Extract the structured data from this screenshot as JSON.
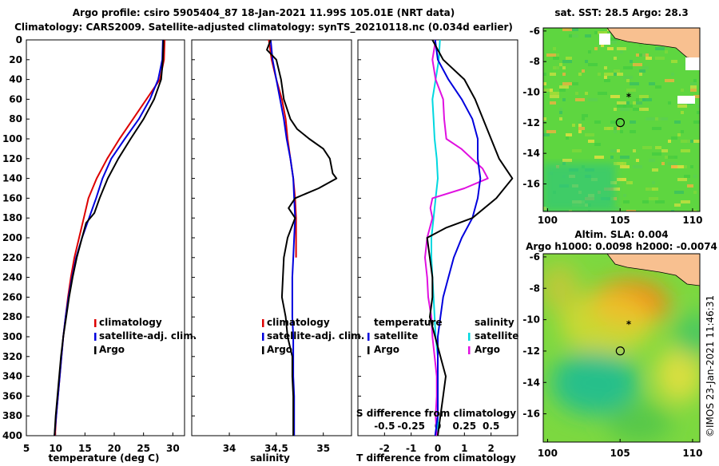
{
  "header": {
    "line1": "Argo profile: csiro 5905404_87 18-Jan-2021 11.99S 105.01E (NRT data)",
    "line2": "Climatology: CARS2009. Satellite-adjusted climatology: synTS_20210118.nc (0.034d earlier)"
  },
  "credit": "©IMOS 23-Jan-2021 11:46:31",
  "colors": {
    "climatology": "#dd0000",
    "satellite": "#0000dd",
    "argo": "#000000",
    "sat_salinity": "#00d8e0",
    "argo_salinity": "#e010e0",
    "land": "#f8c090"
  },
  "chart_data": [
    {
      "type": "line",
      "id": "temperature",
      "xlabel": "temperature (deg C)",
      "ylabel": "",
      "xlim": [
        5,
        32
      ],
      "ylim": [
        400,
        0
      ],
      "xticks": [
        5,
        10,
        15,
        20,
        25,
        30
      ],
      "yticks": [
        0,
        20,
        40,
        60,
        80,
        100,
        120,
        140,
        160,
        180,
        200,
        220,
        240,
        260,
        280,
        300,
        320,
        340,
        360,
        380,
        400
      ],
      "legend": [
        "climatology",
        "satellite-adj. clim.",
        "Argo"
      ],
      "series": [
        {
          "name": "climatology",
          "color": "#dd0000",
          "points": [
            [
              28.6,
              0
            ],
            [
              28.5,
              20
            ],
            [
              27.8,
              40
            ],
            [
              25.5,
              60
            ],
            [
              23.2,
              80
            ],
            [
              20.9,
              100
            ],
            [
              18.8,
              120
            ],
            [
              17.0,
              140
            ],
            [
              15.6,
              160
            ],
            [
              14.8,
              180
            ],
            [
              14.0,
              200
            ],
            [
              13.2,
              220
            ],
            [
              12.6,
              240
            ],
            [
              12.1,
              260
            ],
            [
              11.7,
              280
            ],
            [
              11.3,
              300
            ],
            [
              11.0,
              320
            ],
            [
              10.7,
              340
            ],
            [
              10.4,
              360
            ],
            [
              10.1,
              380
            ],
            [
              9.9,
              400
            ]
          ]
        },
        {
          "name": "satellite-adj. clim.",
          "color": "#0000dd",
          "points": [
            [
              28.3,
              0
            ],
            [
              28.2,
              20
            ],
            [
              27.5,
              40
            ],
            [
              26.1,
              60
            ],
            [
              24.2,
              80
            ],
            [
              21.8,
              100
            ],
            [
              19.5,
              120
            ],
            [
              18.0,
              140
            ],
            [
              16.9,
              160
            ],
            [
              15.7,
              180
            ],
            [
              14.5,
              200
            ],
            [
              13.5,
              220
            ],
            [
              12.8,
              240
            ],
            [
              12.2,
              260
            ],
            [
              11.7,
              280
            ],
            [
              11.3,
              300
            ],
            [
              11.0,
              320
            ],
            [
              10.7,
              340
            ],
            [
              10.4,
              360
            ],
            [
              10.1,
              380
            ],
            [
              9.8,
              400
            ]
          ]
        },
        {
          "name": "Argo",
          "color": "#000000",
          "points": [
            [
              28.4,
              0
            ],
            [
              28.3,
              20
            ],
            [
              28.0,
              40
            ],
            [
              26.8,
              60
            ],
            [
              25.0,
              80
            ],
            [
              22.8,
              100
            ],
            [
              20.7,
              120
            ],
            [
              18.9,
              140
            ],
            [
              17.5,
              160
            ],
            [
              16.6,
              175
            ],
            [
              15.2,
              185
            ],
            [
              14.5,
              200
            ],
            [
              13.6,
              220
            ],
            [
              12.9,
              240
            ],
            [
              12.3,
              260
            ],
            [
              11.8,
              280
            ],
            [
              11.3,
              300
            ],
            [
              10.9,
              320
            ],
            [
              10.6,
              340
            ],
            [
              10.3,
              360
            ],
            [
              10.0,
              380
            ],
            [
              9.8,
              400
            ]
          ]
        }
      ]
    },
    {
      "type": "line",
      "id": "salinity",
      "xlabel": "salinity",
      "ylabel": "",
      "xlim": [
        33.6,
        35.3
      ],
      "ylim": [
        400,
        0
      ],
      "xticks": [
        34,
        34.5,
        35
      ],
      "legend": [
        "climatology",
        "satellite-adj. clim.",
        "Argo"
      ],
      "series": [
        {
          "name": "climatology",
          "color": "#dd0000",
          "points": [
            [
              34.42,
              0
            ],
            [
              34.45,
              20
            ],
            [
              34.5,
              40
            ],
            [
              34.56,
              60
            ],
            [
              34.6,
              80
            ],
            [
              34.62,
              100
            ],
            [
              34.65,
              120
            ],
            [
              34.68,
              140
            ],
            [
              34.7,
              160
            ],
            [
              34.71,
              180
            ],
            [
              34.71,
              200
            ],
            [
              34.71,
              220
            ]
          ]
        },
        {
          "name": "satellite-adj. clim.",
          "color": "#0000dd",
          "points": [
            [
              34.44,
              0
            ],
            [
              34.46,
              20
            ],
            [
              34.5,
              40
            ],
            [
              34.54,
              60
            ],
            [
              34.58,
              80
            ],
            [
              34.61,
              100
            ],
            [
              34.65,
              120
            ],
            [
              34.68,
              140
            ],
            [
              34.69,
              160
            ],
            [
              34.7,
              180
            ],
            [
              34.69,
              200
            ],
            [
              34.68,
              220
            ],
            [
              34.67,
              240
            ],
            [
              34.67,
              260
            ],
            [
              34.67,
              280
            ],
            [
              34.68,
              300
            ],
            [
              34.68,
              320
            ],
            [
              34.68,
              340
            ],
            [
              34.69,
              360
            ],
            [
              34.69,
              380
            ],
            [
              34.69,
              400
            ]
          ]
        },
        {
          "name": "Argo",
          "color": "#000000",
          "points": [
            [
              34.44,
              0
            ],
            [
              34.4,
              10
            ],
            [
              34.5,
              20
            ],
            [
              34.55,
              40
            ],
            [
              34.58,
              60
            ],
            [
              34.65,
              80
            ],
            [
              34.72,
              90
            ],
            [
              34.85,
              100
            ],
            [
              35.0,
              110
            ],
            [
              35.07,
              120
            ],
            [
              35.1,
              135
            ],
            [
              35.14,
              140
            ],
            [
              34.95,
              150
            ],
            [
              34.7,
              160
            ],
            [
              34.63,
              170
            ],
            [
              34.7,
              180
            ],
            [
              34.62,
              200
            ],
            [
              34.58,
              220
            ],
            [
              34.57,
              240
            ],
            [
              34.56,
              260
            ],
            [
              34.6,
              280
            ],
            [
              34.62,
              300
            ],
            [
              34.67,
              320
            ],
            [
              34.67,
              340
            ],
            [
              34.68,
              360
            ],
            [
              34.68,
              380
            ],
            [
              34.68,
              400
            ]
          ]
        }
      ]
    },
    {
      "type": "line",
      "id": "difference",
      "xlabel": "T difference from climatology",
      "xlabel_top": "S difference from climatology",
      "ylabel": "",
      "xlim": [
        -3,
        3
      ],
      "xlim_salinity": [
        -0.75,
        0.75
      ],
      "ylim": [
        400,
        0
      ],
      "xticks": [
        -2,
        -1,
        0,
        1,
        2
      ],
      "xticks_salinity": [
        -0.5,
        -0.25,
        0,
        0.25,
        0.5
      ],
      "xticklabels_salinity": [
        "-0.5",
        "-0.25",
        "0",
        "0.25",
        "0.5"
      ],
      "legend_groups": [
        {
          "title": "temperature",
          "items": [
            "satellite",
            "Argo"
          ]
        },
        {
          "title": "salinity",
          "items": [
            "satellite",
            "Argo"
          ]
        }
      ],
      "series": [
        {
          "name": "temperature satellite",
          "color": "#0000dd",
          "points": [
            [
              -0.1,
              0
            ],
            [
              0.0,
              20
            ],
            [
              0.4,
              40
            ],
            [
              0.9,
              60
            ],
            [
              1.3,
              80
            ],
            [
              1.5,
              100
            ],
            [
              1.5,
              120
            ],
            [
              1.6,
              140
            ],
            [
              1.5,
              160
            ],
            [
              1.3,
              180
            ],
            [
              0.9,
              200
            ],
            [
              0.6,
              220
            ],
            [
              0.4,
              240
            ],
            [
              0.2,
              260
            ],
            [
              0.1,
              280
            ],
            [
              0.0,
              300
            ],
            [
              0.0,
              320
            ],
            [
              0.0,
              340
            ],
            [
              0.0,
              360
            ],
            [
              0.0,
              380
            ],
            [
              -0.1,
              400
            ]
          ]
        },
        {
          "name": "temperature Argo",
          "color": "#000000",
          "points": [
            [
              -0.2,
              0
            ],
            [
              0.2,
              20
            ],
            [
              1.0,
              40
            ],
            [
              1.4,
              60
            ],
            [
              2.0,
              100
            ],
            [
              2.3,
              120
            ],
            [
              2.8,
              140
            ],
            [
              2.2,
              160
            ],
            [
              1.3,
              180
            ],
            [
              0.3,
              190
            ],
            [
              -0.4,
              200
            ],
            [
              -0.3,
              220
            ],
            [
              -0.2,
              240
            ],
            [
              -0.2,
              260
            ],
            [
              -0.3,
              280
            ],
            [
              -0.1,
              300
            ],
            [
              0.1,
              320
            ],
            [
              0.3,
              340
            ],
            [
              0.2,
              360
            ],
            [
              0.1,
              380
            ],
            [
              0.0,
              400
            ]
          ]
        },
        {
          "name": "salinity satellite",
          "color": "#00d8e0",
          "points": [
            [
              0.02,
              0
            ],
            [
              0.01,
              20
            ],
            [
              -0.02,
              40
            ],
            [
              -0.05,
              60
            ],
            [
              -0.04,
              80
            ],
            [
              -0.03,
              100
            ],
            [
              -0.01,
              120
            ],
            [
              0.0,
              140
            ],
            [
              -0.02,
              160
            ],
            [
              -0.04,
              180
            ],
            [
              -0.06,
              200
            ],
            [
              -0.06,
              220
            ],
            [
              -0.05,
              240
            ],
            [
              -0.04,
              260
            ],
            [
              -0.03,
              280
            ],
            [
              -0.02,
              300
            ],
            [
              0.0,
              320
            ],
            [
              0.0,
              340
            ],
            [
              0.0,
              360
            ],
            [
              0.0,
              380
            ],
            [
              0.0,
              400
            ]
          ]
        },
        {
          "name": "salinity Argo",
          "color": "#e010e0",
          "points": [
            [
              -0.02,
              0
            ],
            [
              -0.05,
              20
            ],
            [
              -0.02,
              40
            ],
            [
              0.05,
              60
            ],
            [
              0.06,
              80
            ],
            [
              0.08,
              100
            ],
            [
              0.22,
              110
            ],
            [
              0.42,
              130
            ],
            [
              0.47,
              140
            ],
            [
              0.25,
              150
            ],
            [
              -0.05,
              160
            ],
            [
              -0.07,
              170
            ],
            [
              -0.05,
              180
            ],
            [
              -0.1,
              200
            ],
            [
              -0.12,
              220
            ],
            [
              -0.1,
              240
            ],
            [
              -0.09,
              260
            ],
            [
              -0.06,
              280
            ],
            [
              -0.05,
              300
            ],
            [
              -0.03,
              320
            ],
            [
              -0.01,
              340
            ],
            [
              -0.01,
              360
            ],
            [
              -0.02,
              380
            ],
            [
              -0.01,
              400
            ]
          ]
        }
      ]
    },
    {
      "type": "heatmap",
      "id": "sst_map",
      "title": "sat. SST: 28.5 Argo: 28.3",
      "xticks": [
        100,
        105,
        110
      ],
      "yticks": [
        -6,
        -8,
        -10,
        -12,
        -14,
        -16
      ],
      "xlim": [
        99.7,
        110.5
      ],
      "ylim": [
        -17.8,
        -5.8
      ],
      "argo_position": [
        105.01,
        -11.99
      ],
      "marker_star": [
        105.6,
        -10.2
      ]
    },
    {
      "type": "heatmap",
      "id": "sla_map",
      "title_line1": "Altim. SLA: 0.004",
      "title_line2": "Argo h1000: 0.0098 h2000: -0.0074",
      "xticks": [
        100,
        105,
        110
      ],
      "yticks": [
        -6,
        -8,
        -10,
        -12,
        -14,
        -16
      ],
      "xlim": [
        99.7,
        110.5
      ],
      "ylim": [
        -17.8,
        -5.8
      ],
      "argo_position": [
        105.01,
        -11.99
      ],
      "marker_star": [
        105.6,
        -10.2
      ]
    }
  ]
}
